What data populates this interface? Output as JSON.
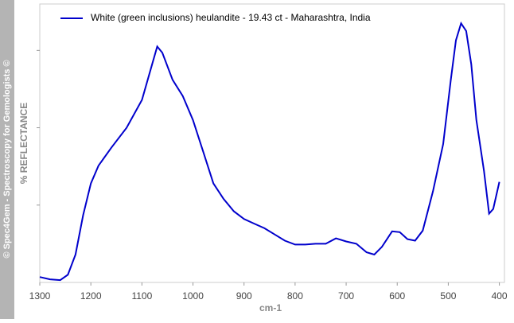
{
  "chart_data": {
    "type": "line",
    "watermark": "© Spec4Gem - Spectroscopy for Gemologists ©",
    "xlabel": "cm-1",
    "ylabel": "% REFLECTANCE",
    "x": [
      1300,
      1280,
      1260,
      1245,
      1230,
      1215,
      1200,
      1185,
      1160,
      1130,
      1100,
      1080,
      1070,
      1060,
      1040,
      1020,
      1000,
      980,
      960,
      940,
      920,
      900,
      880,
      860,
      840,
      820,
      800,
      780,
      760,
      740,
      720,
      700,
      680,
      660,
      645,
      630,
      610,
      595,
      580,
      565,
      550,
      530,
      510,
      495,
      485,
      475,
      465,
      455,
      445,
      430,
      420,
      412,
      400
    ],
    "series": [
      {
        "name": "White (green inclusions) heulandite - 19.43 ct - Maharashtra, India",
        "color": "#0000cc",
        "values": [
          0.07,
          0.04,
          0.03,
          0.1,
          0.36,
          0.87,
          1.28,
          1.51,
          1.74,
          2.0,
          2.36,
          2.82,
          3.05,
          2.97,
          2.62,
          2.41,
          2.1,
          1.69,
          1.28,
          1.08,
          0.92,
          0.82,
          0.76,
          0.7,
          0.62,
          0.54,
          0.49,
          0.49,
          0.5,
          0.5,
          0.57,
          0.53,
          0.5,
          0.39,
          0.36,
          0.46,
          0.66,
          0.65,
          0.56,
          0.54,
          0.67,
          1.18,
          1.79,
          2.62,
          3.13,
          3.35,
          3.25,
          2.82,
          2.1,
          1.44,
          0.89,
          0.95,
          1.3
        ]
      }
    ],
    "xlim": [
      1300,
      390
    ],
    "xticks": [
      1300,
      1200,
      1100,
      1000,
      900,
      800,
      700,
      600,
      500,
      400
    ],
    "ylim": [
      0,
      3.6
    ],
    "yticks": [
      1,
      2,
      3
    ],
    "legend": "top-left"
  }
}
